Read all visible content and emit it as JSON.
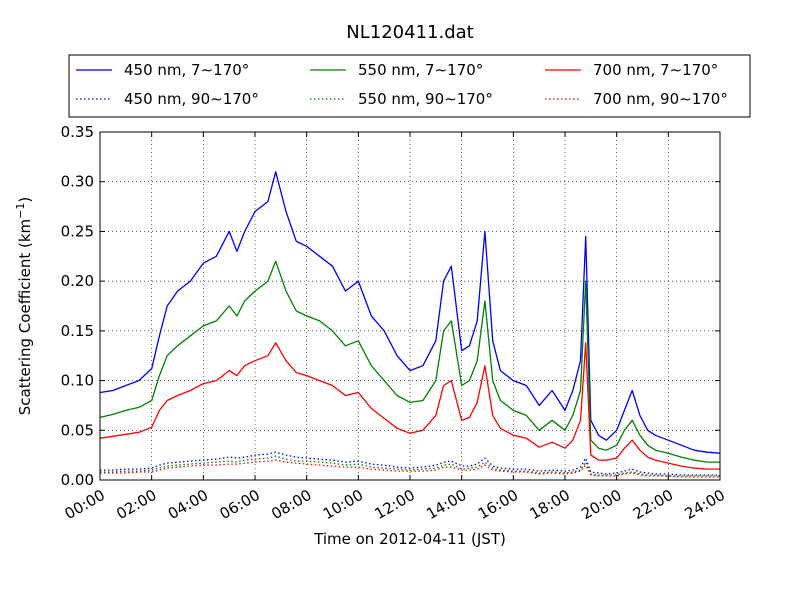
{
  "chart_data": {
    "type": "line",
    "title": "NL120411.dat",
    "xlabel": "Time on 2012-04-11 (JST)",
    "ylabel": "Scattering Coefficient (km",
    "ylabel_exponent": "−1",
    "ylabel_suffix": ")",
    "xlim": [
      0,
      24
    ],
    "ylim": [
      0,
      0.35
    ],
    "x_ticks": [
      0,
      2,
      4,
      6,
      8,
      10,
      12,
      14,
      16,
      18,
      20,
      22,
      24
    ],
    "x_tick_labels": [
      "00:00",
      "02:00",
      "04:00",
      "06:00",
      "08:00",
      "10:00",
      "12:00",
      "14:00",
      "16:00",
      "18:00",
      "20:00",
      "22:00",
      "24:00"
    ],
    "y_ticks": [
      0,
      0.05,
      0.1,
      0.15,
      0.2,
      0.25,
      0.3,
      0.35
    ],
    "y_tick_labels": [
      "0.00",
      "0.05",
      "0.10",
      "0.15",
      "0.20",
      "0.25",
      "0.30",
      "0.35"
    ],
    "grid": true,
    "legend_position": "top",
    "x": [
      0,
      0.5,
      1,
      1.5,
      2,
      2.3,
      2.6,
      3,
      3.5,
      4,
      4.5,
      5,
      5.3,
      5.6,
      6,
      6.5,
      6.8,
      7.2,
      7.6,
      8,
      8.5,
      9,
      9.5,
      10,
      10.5,
      11,
      11.5,
      12,
      12.5,
      13,
      13.3,
      13.6,
      14,
      14.3,
      14.6,
      14.9,
      15.2,
      15.5,
      16,
      16.5,
      17,
      17.5,
      18,
      18.3,
      18.6,
      18.8,
      19,
      19.3,
      19.6,
      20,
      20.3,
      20.6,
      20.9,
      21.2,
      21.5,
      22,
      22.5,
      23,
      23.5,
      24
    ],
    "series": [
      {
        "name": "450 nm, 7∼170°",
        "color": "#0000ff",
        "style": "solid",
        "values": [
          0.088,
          0.09,
          0.095,
          0.1,
          0.112,
          0.145,
          0.175,
          0.19,
          0.2,
          0.218,
          0.225,
          0.25,
          0.23,
          0.25,
          0.27,
          0.28,
          0.31,
          0.27,
          0.24,
          0.235,
          0.225,
          0.215,
          0.19,
          0.2,
          0.165,
          0.15,
          0.125,
          0.11,
          0.115,
          0.14,
          0.2,
          0.215,
          0.13,
          0.135,
          0.16,
          0.25,
          0.14,
          0.11,
          0.1,
          0.095,
          0.075,
          0.09,
          0.07,
          0.09,
          0.12,
          0.245,
          0.06,
          0.045,
          0.04,
          0.05,
          0.07,
          0.09,
          0.065,
          0.05,
          0.045,
          0.04,
          0.035,
          0.03,
          0.028,
          0.027
        ]
      },
      {
        "name": "550 nm, 7∼170°",
        "color": "#008000",
        "style": "solid",
        "values": [
          0.063,
          0.066,
          0.07,
          0.073,
          0.08,
          0.105,
          0.125,
          0.135,
          0.145,
          0.155,
          0.16,
          0.175,
          0.165,
          0.18,
          0.19,
          0.2,
          0.22,
          0.19,
          0.17,
          0.165,
          0.16,
          0.15,
          0.135,
          0.14,
          0.115,
          0.1,
          0.085,
          0.078,
          0.08,
          0.1,
          0.15,
          0.16,
          0.095,
          0.1,
          0.12,
          0.18,
          0.1,
          0.08,
          0.07,
          0.065,
          0.05,
          0.06,
          0.05,
          0.065,
          0.09,
          0.2,
          0.04,
          0.032,
          0.03,
          0.035,
          0.05,
          0.06,
          0.045,
          0.035,
          0.03,
          0.027,
          0.023,
          0.02,
          0.018,
          0.018
        ]
      },
      {
        "name": "700 nm, 7∼170°",
        "color": "#ff0000",
        "style": "solid",
        "values": [
          0.042,
          0.044,
          0.046,
          0.048,
          0.053,
          0.07,
          0.08,
          0.085,
          0.09,
          0.097,
          0.1,
          0.11,
          0.105,
          0.115,
          0.12,
          0.125,
          0.138,
          0.12,
          0.108,
          0.105,
          0.1,
          0.095,
          0.085,
          0.088,
          0.072,
          0.062,
          0.052,
          0.047,
          0.05,
          0.065,
          0.095,
          0.1,
          0.06,
          0.063,
          0.078,
          0.115,
          0.065,
          0.052,
          0.045,
          0.042,
          0.033,
          0.038,
          0.032,
          0.04,
          0.06,
          0.138,
          0.025,
          0.02,
          0.02,
          0.022,
          0.032,
          0.04,
          0.03,
          0.023,
          0.02,
          0.017,
          0.014,
          0.012,
          0.011,
          0.011
        ]
      },
      {
        "name": "450 nm, 90∼170°",
        "color": "#0000ff",
        "style": "dotted",
        "values": [
          0.01,
          0.01,
          0.011,
          0.011,
          0.012,
          0.015,
          0.017,
          0.018,
          0.019,
          0.02,
          0.021,
          0.023,
          0.022,
          0.023,
          0.025,
          0.026,
          0.028,
          0.025,
          0.023,
          0.022,
          0.021,
          0.02,
          0.018,
          0.019,
          0.016,
          0.015,
          0.013,
          0.012,
          0.013,
          0.015,
          0.018,
          0.019,
          0.014,
          0.014,
          0.016,
          0.022,
          0.014,
          0.012,
          0.011,
          0.011,
          0.009,
          0.01,
          0.009,
          0.01,
          0.013,
          0.022,
          0.008,
          0.007,
          0.006,
          0.007,
          0.009,
          0.011,
          0.008,
          0.007,
          0.006,
          0.006,
          0.005,
          0.005,
          0.005,
          0.005
        ]
      },
      {
        "name": "550 nm, 90∼170°",
        "color": "#008000",
        "style": "dotted",
        "values": [
          0.008,
          0.008,
          0.009,
          0.009,
          0.01,
          0.012,
          0.014,
          0.015,
          0.016,
          0.017,
          0.018,
          0.019,
          0.018,
          0.02,
          0.021,
          0.022,
          0.024,
          0.021,
          0.019,
          0.019,
          0.018,
          0.017,
          0.015,
          0.016,
          0.013,
          0.012,
          0.011,
          0.01,
          0.011,
          0.012,
          0.015,
          0.016,
          0.011,
          0.012,
          0.013,
          0.018,
          0.012,
          0.01,
          0.009,
          0.009,
          0.007,
          0.008,
          0.007,
          0.008,
          0.01,
          0.018,
          0.006,
          0.005,
          0.005,
          0.005,
          0.007,
          0.008,
          0.006,
          0.005,
          0.005,
          0.004,
          0.004,
          0.004,
          0.004,
          0.004
        ]
      },
      {
        "name": "700 nm, 90∼170°",
        "color": "#ff0000",
        "style": "dotted",
        "values": [
          0.007,
          0.007,
          0.007,
          0.008,
          0.008,
          0.01,
          0.012,
          0.013,
          0.014,
          0.015,
          0.015,
          0.016,
          0.016,
          0.017,
          0.018,
          0.019,
          0.02,
          0.018,
          0.017,
          0.016,
          0.015,
          0.014,
          0.013,
          0.013,
          0.011,
          0.01,
          0.009,
          0.009,
          0.009,
          0.01,
          0.013,
          0.013,
          0.01,
          0.01,
          0.011,
          0.015,
          0.01,
          0.009,
          0.008,
          0.008,
          0.006,
          0.007,
          0.006,
          0.007,
          0.009,
          0.015,
          0.005,
          0.004,
          0.004,
          0.004,
          0.006,
          0.007,
          0.005,
          0.004,
          0.004,
          0.004,
          0.003,
          0.003,
          0.003,
          0.003
        ]
      }
    ]
  }
}
